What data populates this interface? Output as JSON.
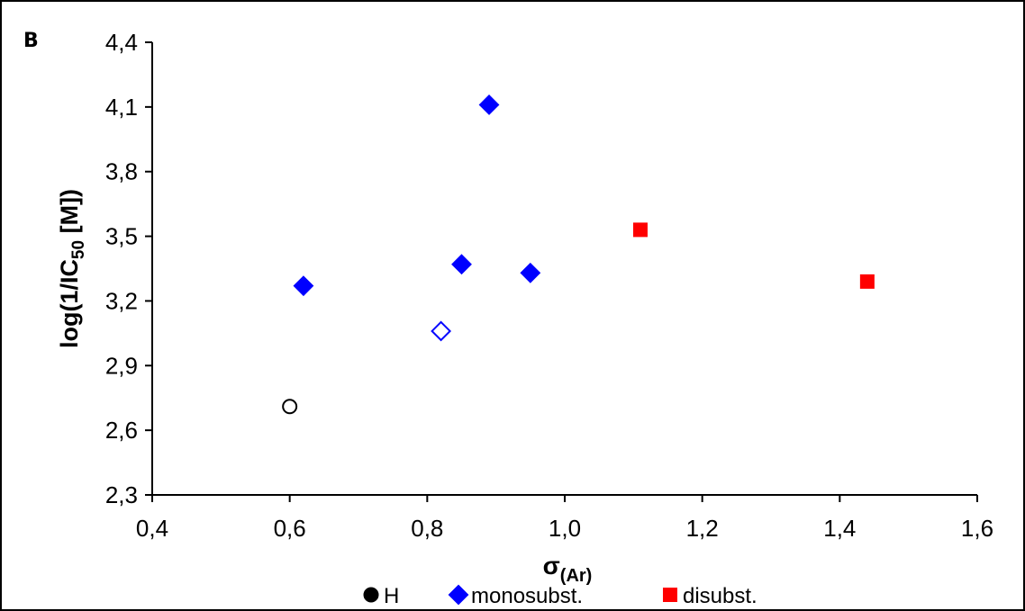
{
  "chart_data": {
    "type": "scatter",
    "panel_label": "B",
    "xlabel": {
      "main": "σ",
      "sub": "(Ar)"
    },
    "ylabel": {
      "pre": "log(1/IC",
      "sub": "50",
      "post": " [M])"
    },
    "xlim": [
      0.4,
      1.6
    ],
    "ylim": [
      2.3,
      4.4
    ],
    "xticks": [
      0.4,
      0.6,
      0.8,
      1.0,
      1.2,
      1.4,
      1.6
    ],
    "xtick_labels": [
      "0,4",
      "0,6",
      "0,8",
      "1,0",
      "1,2",
      "1,4",
      "1,6"
    ],
    "yticks": [
      2.3,
      2.6,
      2.9,
      3.2,
      3.5,
      3.8,
      4.1,
      4.4
    ],
    "ytick_labels": [
      "2,3",
      "2,6",
      "2,9",
      "3,2",
      "3,5",
      "3,8",
      "4,1",
      "4,4"
    ],
    "grid": false,
    "legend_position": "bottom",
    "series": [
      {
        "name": "H",
        "marker": "circle",
        "color": "#000000",
        "points": [
          {
            "x": 0.6,
            "y": 2.71,
            "filled": false
          }
        ]
      },
      {
        "name": "monosubst.",
        "marker": "diamond",
        "color": "#0000ff",
        "points": [
          {
            "x": 0.62,
            "y": 3.27,
            "filled": true
          },
          {
            "x": 0.82,
            "y": 3.06,
            "filled": false
          },
          {
            "x": 0.85,
            "y": 3.37,
            "filled": true
          },
          {
            "x": 0.89,
            "y": 4.11,
            "filled": true
          },
          {
            "x": 0.95,
            "y": 3.33,
            "filled": true
          }
        ]
      },
      {
        "name": "disubst.",
        "marker": "square",
        "color": "#ff0000",
        "points": [
          {
            "x": 1.11,
            "y": 3.53,
            "filled": true
          },
          {
            "x": 1.44,
            "y": 3.29,
            "filled": true
          }
        ]
      }
    ]
  }
}
